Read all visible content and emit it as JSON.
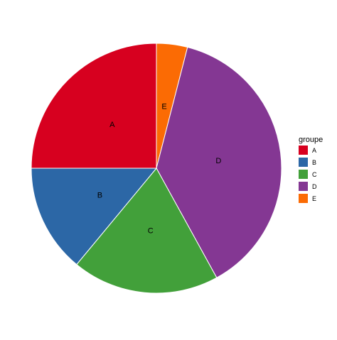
{
  "chart_data": {
    "type": "pie",
    "title": "",
    "categories": [
      "A",
      "B",
      "C",
      "D",
      "E"
    ],
    "values": [
      25,
      14,
      19,
      38,
      4
    ],
    "slice_order_clockwise_from_top": [
      "E",
      "D",
      "C",
      "B",
      "A"
    ],
    "colors": {
      "A": "#d7001f",
      "B": "#2c67a6",
      "C": "#42a03a",
      "D": "#843793",
      "E": "#fb6b04"
    },
    "legend": {
      "title": "groupe",
      "placement": "right",
      "entries": [
        "A",
        "B",
        "C",
        "D",
        "E"
      ]
    },
    "grid": false
  }
}
